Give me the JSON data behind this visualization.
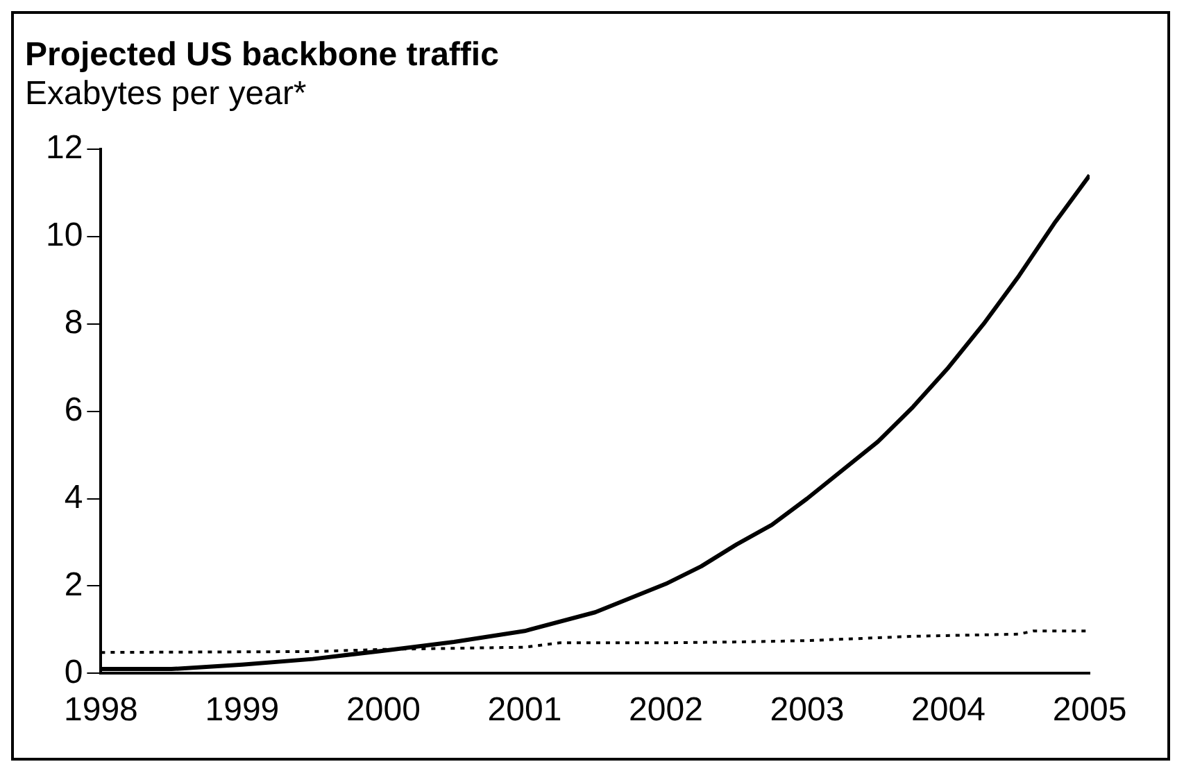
{
  "chart_data": {
    "type": "line",
    "title": "Projected US backbone traffic",
    "subtitle": "Exabytes per year*",
    "xlim": [
      1998,
      2005
    ],
    "xticks": [
      1998,
      1999,
      2000,
      2001,
      2002,
      2003,
      2004,
      2005
    ],
    "ylim": [
      0,
      12
    ],
    "yticks": [
      0,
      2,
      4,
      6,
      8,
      10,
      12
    ],
    "grid": false,
    "legend": false,
    "marker": "none",
    "series": [
      {
        "color": "#000000",
        "line_style": "solid",
        "x": [
          1998,
          1998.5,
          1999,
          1999.5,
          2000,
          2000.5,
          2001,
          2001.5,
          2002,
          2002.25,
          2002.5,
          2002.75,
          2003,
          2003.5,
          2003.75,
          2004,
          2004.25,
          2004.5,
          2004.75,
          2005
        ],
        "values": [
          0.1,
          0.1,
          0.2,
          0.33,
          0.52,
          0.72,
          0.97,
          1.4,
          2.05,
          2.45,
          2.95,
          3.4,
          4.0,
          5.3,
          6.1,
          7.0,
          8.0,
          9.1,
          10.3,
          11.4
        ]
      },
      {
        "color": "#000000",
        "line_style": "dotted",
        "x": [
          1998,
          1999.5,
          2000,
          2001,
          2001.25,
          2002,
          2002.5,
          2003,
          2003.75,
          2004.5,
          2004.6,
          2005
        ],
        "values": [
          0.48,
          0.5,
          0.55,
          0.6,
          0.7,
          0.7,
          0.72,
          0.75,
          0.85,
          0.9,
          0.97,
          0.97
        ]
      }
    ]
  }
}
